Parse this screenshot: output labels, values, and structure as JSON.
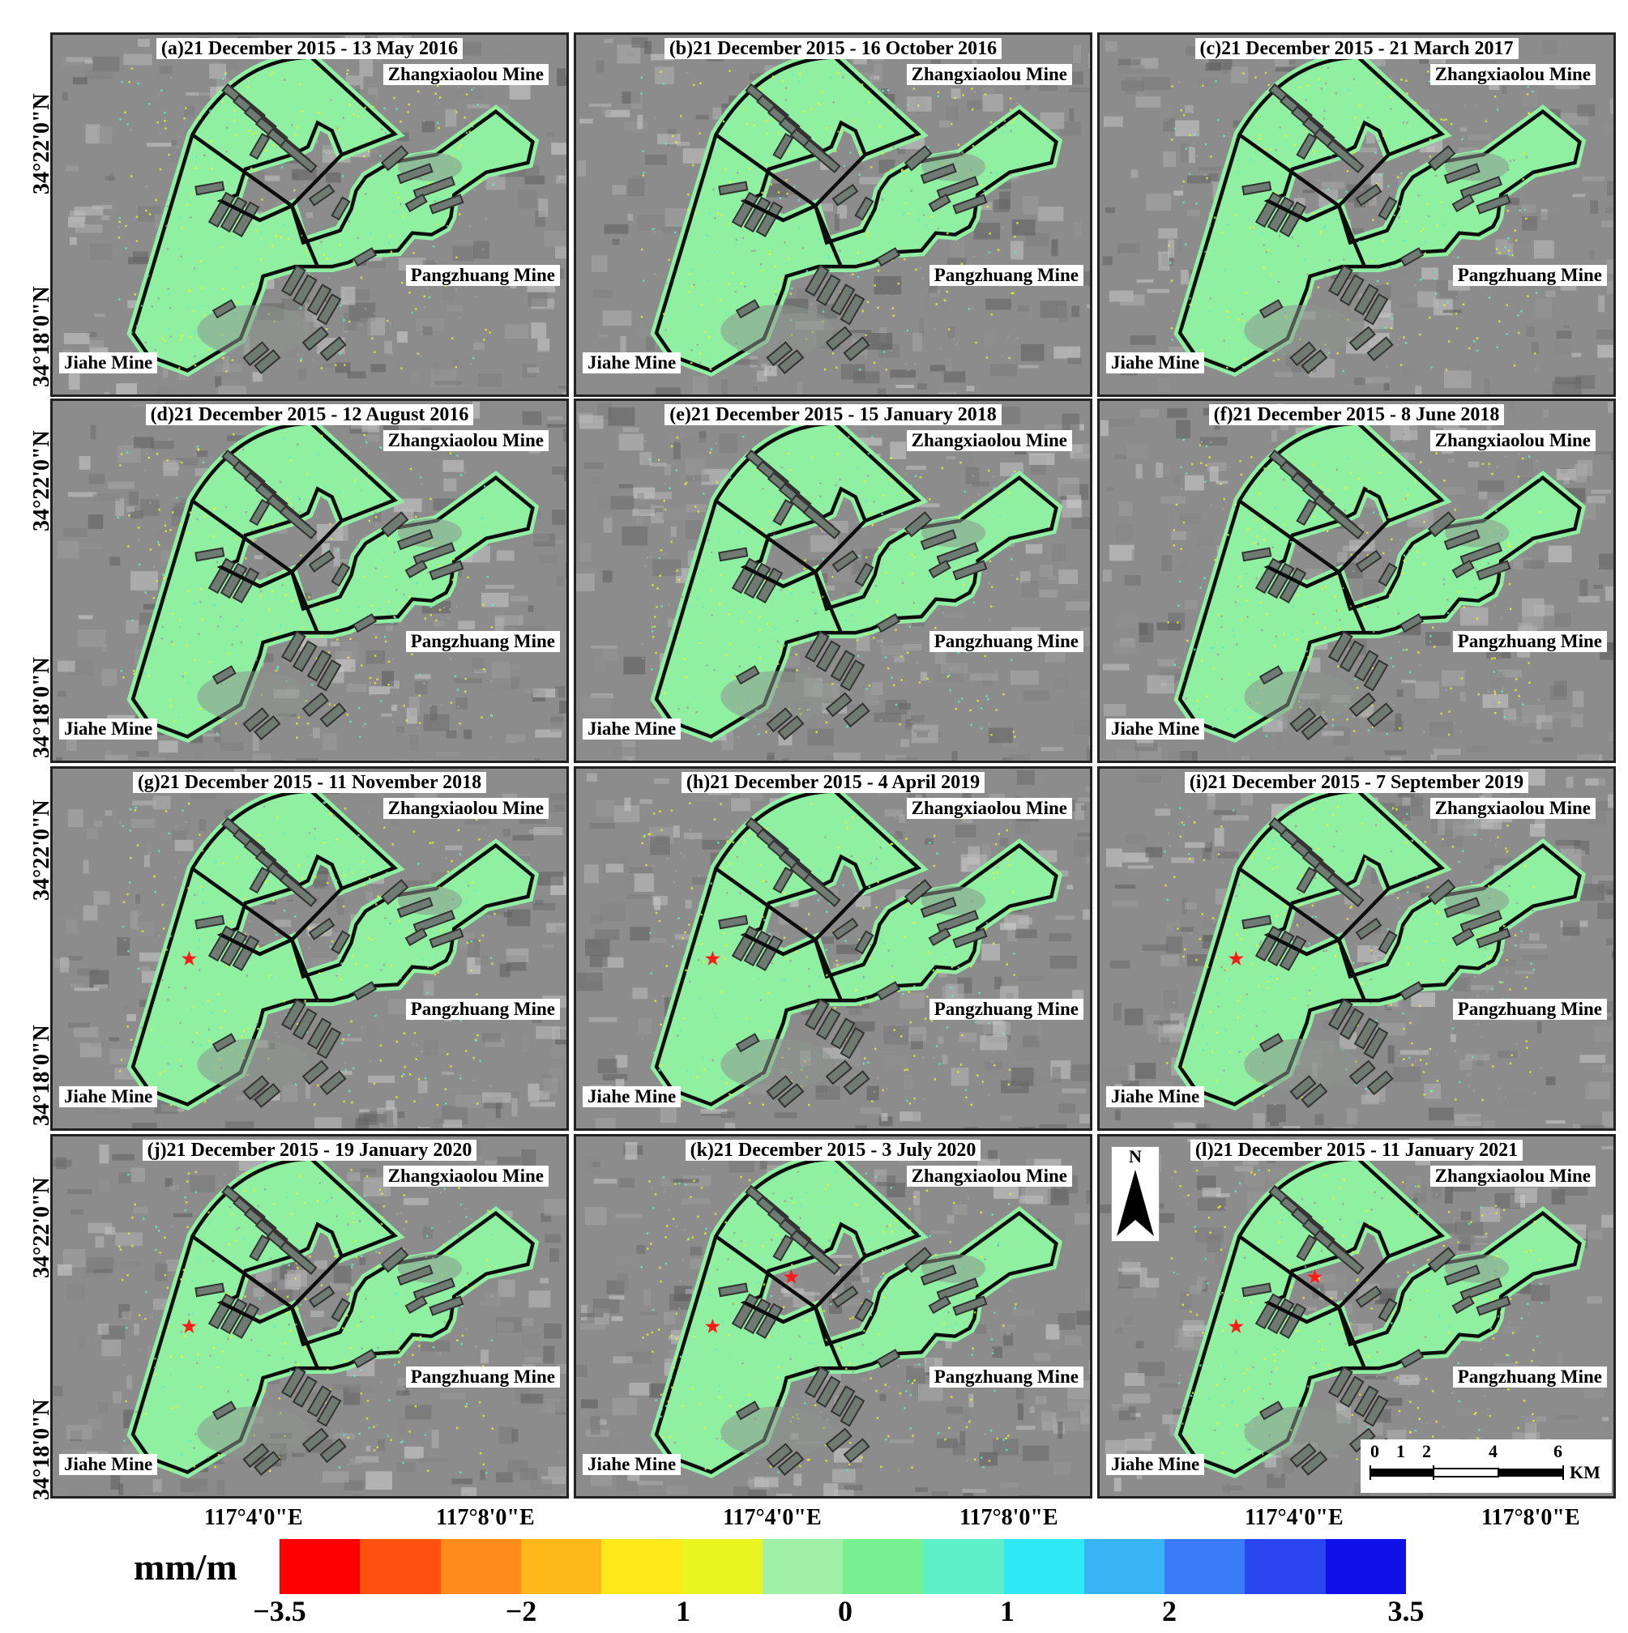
{
  "panels": [
    {
      "title": "(a)21 December 2015 - 13 May 2016",
      "stars": 0
    },
    {
      "title": "(b)21 December 2015 - 16 October 2016",
      "stars": 0
    },
    {
      "title": "(c)21 December 2015 - 21 March 2017",
      "stars": 0
    },
    {
      "title": "(d)21 December 2015 - 12 August 2016",
      "stars": 0
    },
    {
      "title": "(e)21 December 2015 - 15 January 2018",
      "stars": 0
    },
    {
      "title": "(f)21 December 2015 - 8 June 2018",
      "stars": 0
    },
    {
      "title": "(g)21 December 2015 - 11 November 2018",
      "stars": 1
    },
    {
      "title": "(h)21 December 2015 - 4 April 2019",
      "stars": 1
    },
    {
      "title": "(i)21 December 2015 - 7 September 2019",
      "stars": 1
    },
    {
      "title": "(j)21 December 2015 - 19 January 2020",
      "stars": 1
    },
    {
      "title": "(k)21 December 2015 - 3 July 2020",
      "stars": 2
    },
    {
      "title": "(l)21 December 2015 - 11 January 2021",
      "stars": 2
    }
  ],
  "mines": {
    "zhangxiaolou": "Zhangxiaolou Mine",
    "pangzhuang": "Pangzhuang Mine",
    "jiahe": "Jiahe Mine"
  },
  "latitudes": {
    "north": "34°22'0\"N",
    "south": "34°18'0\"N"
  },
  "longitudes": {
    "west": "117°4'0\"E",
    "east": "117°8'0\"E"
  },
  "north_arrow": "N",
  "scale_bar": {
    "ticks": [
      "0",
      "1",
      "2",
      "4",
      "6"
    ],
    "unit": "KM"
  },
  "legend": {
    "title": "mm/m",
    "ticks": [
      "−3.5",
      "−2",
      "1",
      "0",
      "1",
      "2",
      "3.5"
    ],
    "colors": [
      "#ff0000",
      "#ff5010",
      "#ff8c1a",
      "#ffb81a",
      "#ffe81a",
      "#e8f520",
      "#a0f0a8",
      "#78f090",
      "#5ef0c8",
      "#2ee8f5",
      "#38b4f5",
      "#3a7cf5",
      "#2a46f0",
      "#1010e8"
    ]
  }
}
